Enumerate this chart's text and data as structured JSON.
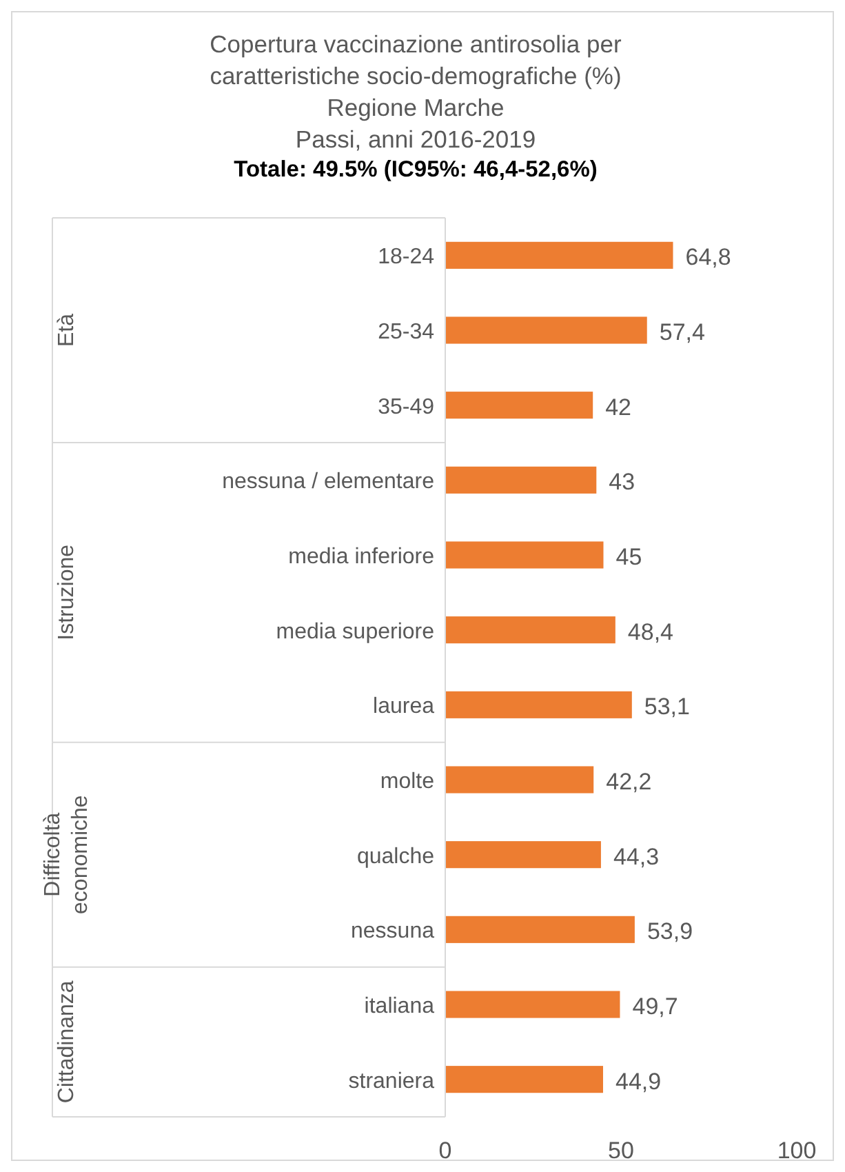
{
  "chart_data": {
    "type": "bar",
    "orientation": "horizontal",
    "title": "Copertura vaccinazione antirosolia  per\ncaratteristiche socio-demografiche (%)\nRegione Marche\nPassi, anni 2016-2019",
    "subtitle": "Totale: 49.5% (IC95%: 46,4-52,6%)",
    "categories": [
      "18-24",
      "25-34",
      "35-49",
      "nessuna / elementare",
      "media inferiore",
      "media superiore",
      "laurea",
      "molte",
      "qualche",
      "nessuna",
      "italiana",
      "straniera"
    ],
    "values": [
      64.8,
      57.4,
      42,
      43,
      45,
      48.4,
      53.1,
      42.2,
      44.3,
      53.9,
      49.7,
      44.9
    ],
    "value_labels": [
      "64,8",
      "57,4",
      "42",
      "43",
      "45",
      "48,4",
      "53,1",
      "42,2",
      "44,3",
      "53,9",
      "49,7",
      "44,9"
    ],
    "color": "#ed7d31",
    "xlim": [
      0,
      100
    ],
    "xticks": [
      0,
      50,
      100
    ],
    "grid": false,
    "annotations": [
      "Età",
      "Istruzione",
      "Difficoltà\neconomiche",
      "Cittadinanza"
    ]
  }
}
